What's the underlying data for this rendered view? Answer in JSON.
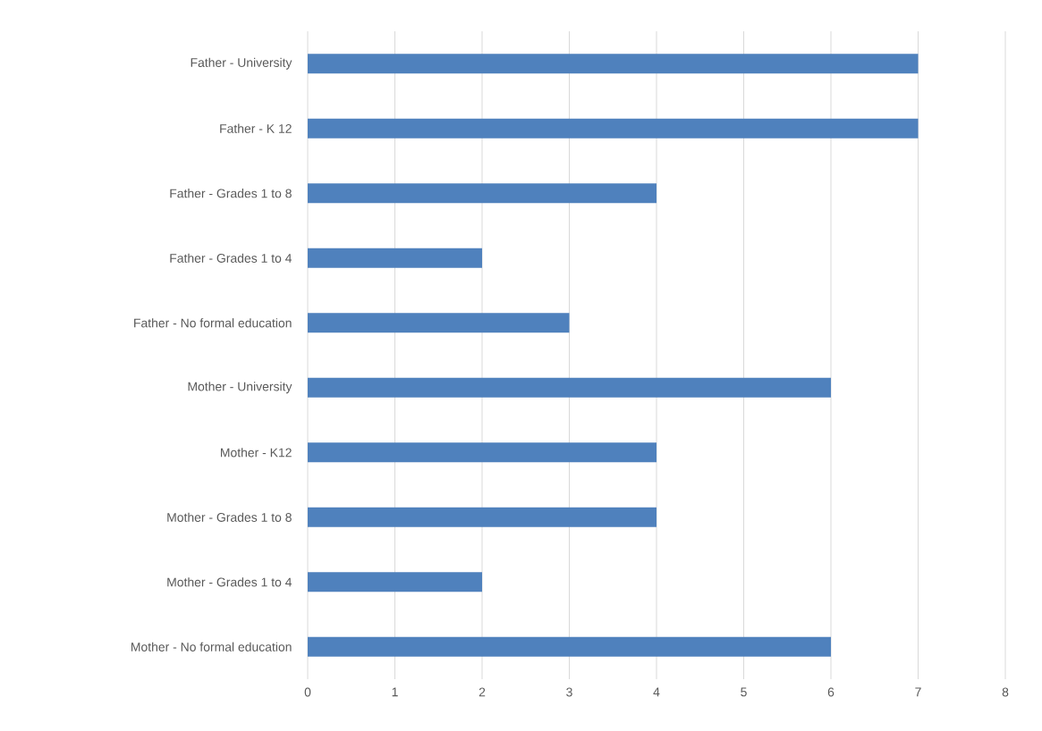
{
  "chart_data": {
    "type": "bar",
    "orientation": "horizontal",
    "categories": [
      "Father - University",
      "Father - K 12",
      "Father - Grades 1 to 8",
      "Father - Grades 1 to 4",
      "Father - No formal education",
      "Mother - University",
      "Mother - K12",
      "Mother - Grades 1 to 8",
      "Mother - Grades 1 to 4",
      "Mother - No formal education"
    ],
    "values": [
      7,
      7,
      4,
      2,
      3,
      6,
      4,
      4,
      2,
      6
    ],
    "color": "#4f81bd",
    "xlim": [
      0,
      8
    ],
    "xticks": [
      0,
      1,
      2,
      3,
      4,
      5,
      6,
      7,
      8
    ],
    "grid": "x"
  }
}
